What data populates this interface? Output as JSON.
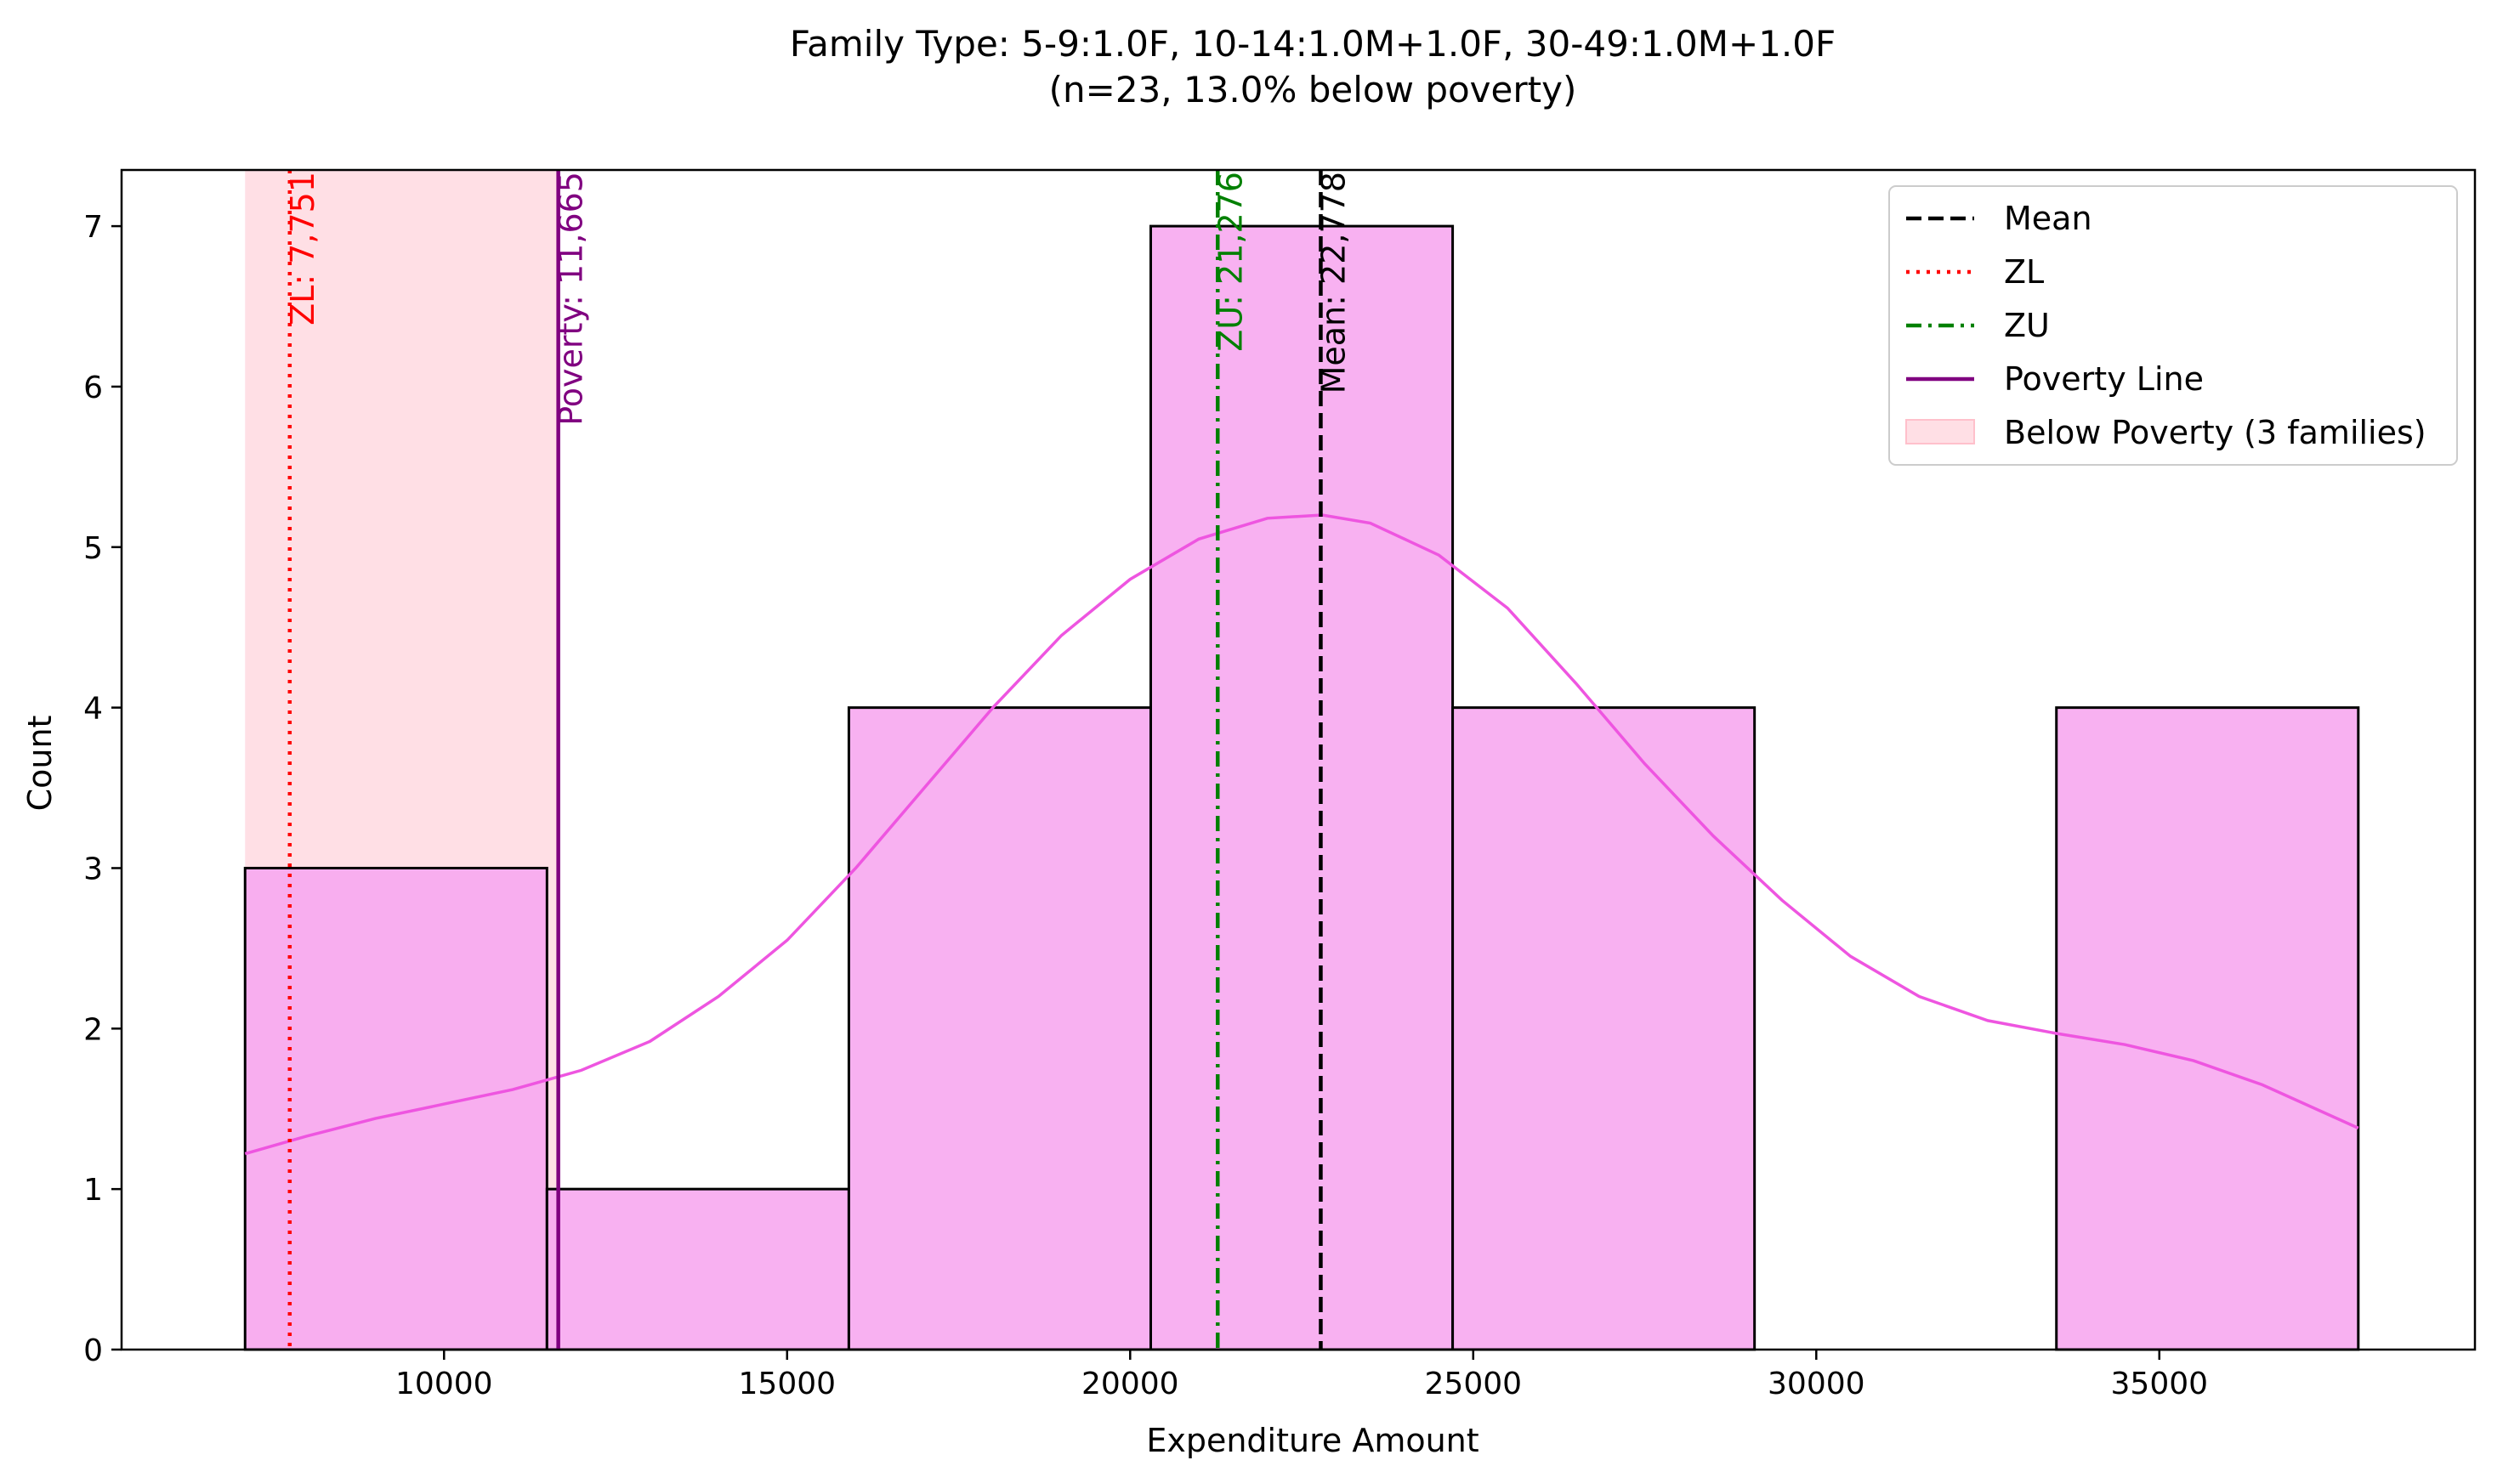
{
  "chart_data": {
    "type": "bar",
    "title_line1": "Family Type: 5-9:1.0F, 10-14:1.0M+1.0F, 30-49:1.0M+1.0F",
    "title_line2": "(n=23, 13.0% below poverty)",
    "xlabel": "Expenditure Amount",
    "ylabel": "Count",
    "xlim": [
      5300,
      39600
    ],
    "ylim": [
      0,
      7.35
    ],
    "xticks": [
      10000,
      15000,
      20000,
      25000,
      30000,
      35000
    ],
    "yticks": [
      0,
      1,
      2,
      3,
      4,
      5,
      6,
      7
    ],
    "bins": [
      {
        "x0": 7100,
        "x1": 11500,
        "count": 3
      },
      {
        "x0": 11500,
        "x1": 15900,
        "count": 1
      },
      {
        "x0": 15900,
        "x1": 20300,
        "count": 4
      },
      {
        "x0": 20300,
        "x1": 24700,
        "count": 7
      },
      {
        "x0": 24700,
        "x1": 29100,
        "count": 4
      },
      {
        "x0": 29100,
        "x1": 33500,
        "count": 0
      },
      {
        "x0": 33500,
        "x1": 37900,
        "count": 4
      }
    ],
    "kde": [
      [
        7100,
        1.22
      ],
      [
        8000,
        1.33
      ],
      [
        9000,
        1.44
      ],
      [
        10000,
        1.53
      ],
      [
        11000,
        1.62
      ],
      [
        12000,
        1.74
      ],
      [
        13000,
        1.92
      ],
      [
        14000,
        2.2
      ],
      [
        15000,
        2.55
      ],
      [
        16000,
        3.0
      ],
      [
        17000,
        3.5
      ],
      [
        18000,
        4.0
      ],
      [
        19000,
        4.45
      ],
      [
        20000,
        4.8
      ],
      [
        21000,
        5.05
      ],
      [
        22000,
        5.18
      ],
      [
        22800,
        5.2
      ],
      [
        23500,
        5.15
      ],
      [
        24500,
        4.95
      ],
      [
        25500,
        4.62
      ],
      [
        26500,
        4.15
      ],
      [
        27500,
        3.65
      ],
      [
        28500,
        3.2
      ],
      [
        29500,
        2.8
      ],
      [
        30500,
        2.45
      ],
      [
        31500,
        2.2
      ],
      [
        32500,
        2.05
      ],
      [
        33500,
        1.97
      ],
      [
        34500,
        1.9
      ],
      [
        35500,
        1.8
      ],
      [
        36500,
        1.65
      ],
      [
        37900,
        1.38
      ]
    ],
    "below_poverty_span": [
      7100,
      11665
    ],
    "lines": [
      {
        "key": "zl",
        "label": "ZL: 7,751",
        "x": 7751,
        "color": "#ff0000",
        "dash": "dotted"
      },
      {
        "key": "poverty",
        "label": "Poverty: 11,665",
        "x": 11665,
        "color": "#800080",
        "dash": "solid"
      },
      {
        "key": "zu",
        "label": "ZU: 21,276",
        "x": 21276,
        "color": "#008000",
        "dash": "dashdot"
      },
      {
        "key": "mean",
        "label": "Mean: 22,778",
        "x": 22778,
        "color": "#000000",
        "dash": "dashed"
      }
    ],
    "legend_position": "top-right",
    "legend": [
      {
        "label": "Mean",
        "kind": "dashed",
        "color": "#000000"
      },
      {
        "label": "ZL",
        "kind": "dotted",
        "color": "#ff0000"
      },
      {
        "label": "ZU",
        "kind": "dashdot",
        "color": "#008000"
      },
      {
        "label": "Poverty Line",
        "kind": "solid",
        "color": "#800080"
      },
      {
        "label": "Below Poverty (3 families)",
        "kind": "patch",
        "color": "#ffc0cb"
      }
    ],
    "colors": {
      "bar_fill": "#f7a8f0",
      "bar_edge": "#000000",
      "kde": "#ee55e0",
      "poverty_shade": "#ffc0cb"
    }
  }
}
